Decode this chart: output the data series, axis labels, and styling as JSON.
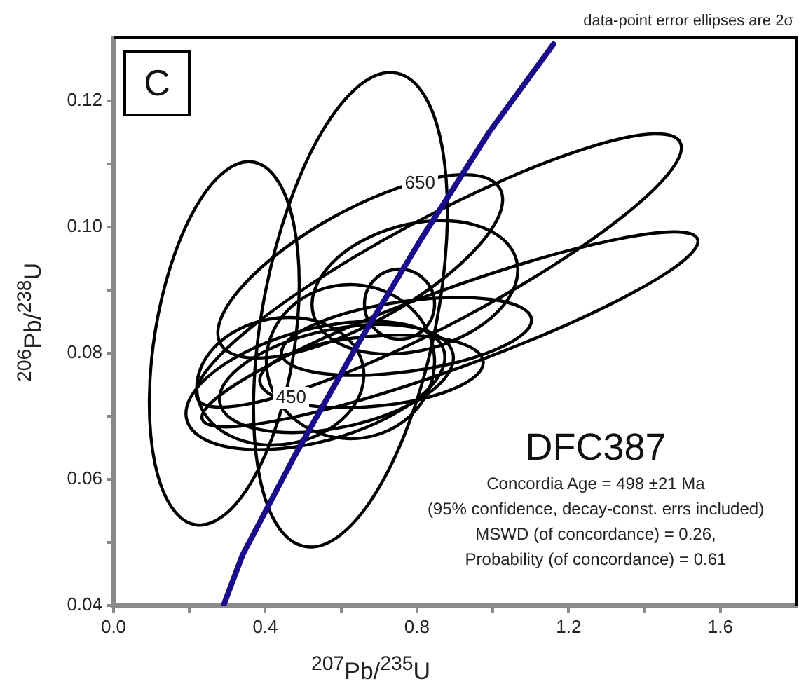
{
  "chart_data": {
    "type": "line",
    "title": "DFC387",
    "xlabel": "$^{207}$Pb/$^{235}$U",
    "ylabel": "$^{206}$Pb/$^{238}$U",
    "annotations": [
      "data-point error ellipses are 2σ",
      "C",
      "Concordia Age = 498 ±21 Ma",
      "(95% confidence, decay-const. errs included)",
      "MSWD (of concordance) = 0.26,",
      "Probability (of concordance) = 0.61",
      {
        "text": "650",
        "x": 0.9,
        "y": 0.106
      },
      {
        "text": "450",
        "x": 0.56,
        "y": 0.072
      }
    ],
    "xlim": [
      0,
      1.8
    ],
    "ylim": [
      0.04,
      0.13
    ],
    "xticks": [
      {
        "value": 0,
        "label": "0.0"
      },
      {
        "value": 0.2,
        "label": null
      },
      0.4,
      {
        "value": 0.6,
        "label": null
      },
      0.8,
      {
        "value": 1.0,
        "label": null
      },
      1.2,
      {
        "value": 1.4,
        "label": null
      },
      1.6
    ],
    "yticks": [
      0.04,
      {
        "value": 0.05,
        "label": null
      },
      0.06,
      {
        "value": 0.07,
        "label": null
      },
      0.08,
      {
        "value": 0.09,
        "label": null
      },
      {
        "value": 0.1,
        "label": "0.10"
      },
      {
        "value": 0.11,
        "label": null
      },
      0.12
    ],
    "marker": "none",
    "line_style": "solid",
    "series": [
      {
        "color": "#1a0d8c",
        "x": [
          0.29,
          0.34,
          0.48,
          0.64,
          0.81,
          0.99,
          1.16
        ],
        "values": [
          0.04,
          0.048,
          0.064,
          0.081,
          0.098,
          0.115,
          0.129
        ]
      }
    ]
  }
}
